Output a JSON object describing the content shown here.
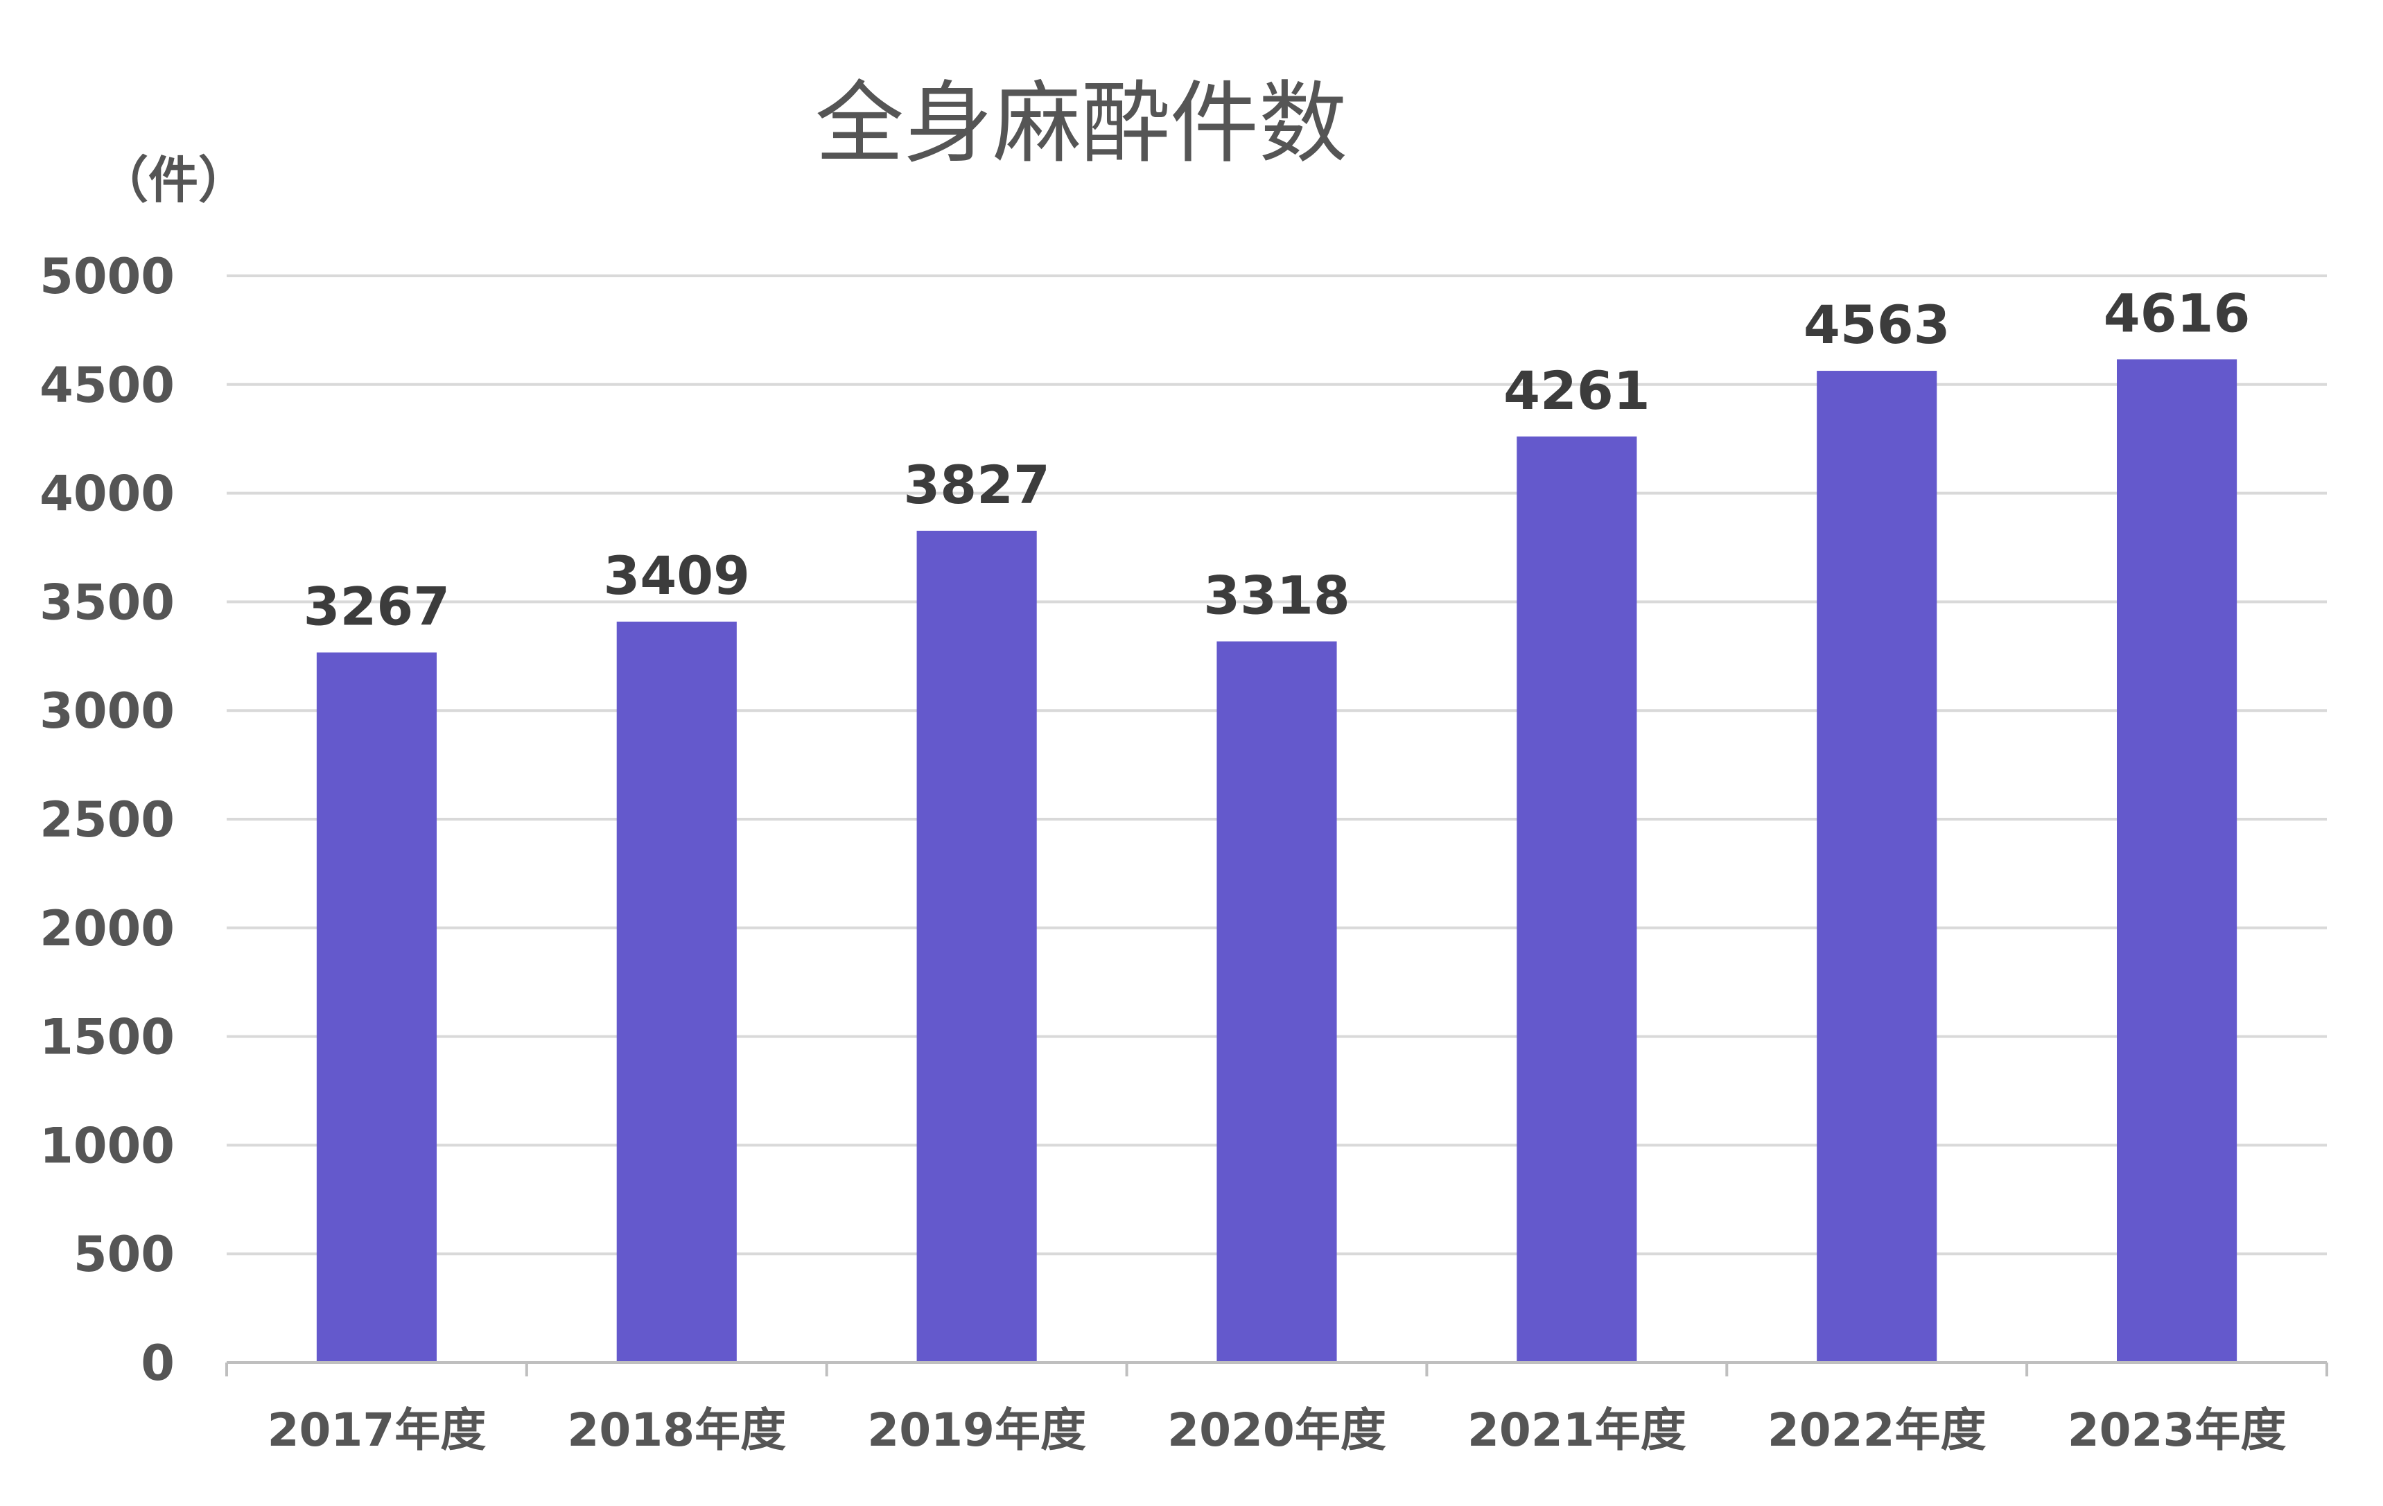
{
  "chart_data": {
    "type": "bar",
    "title": "全身麻酔件数",
    "ylabel": "（件）",
    "xlabel": "",
    "categories": [
      "2017年度",
      "2018年度",
      "2019年度",
      "2020年度",
      "2021年度",
      "2022年度",
      "2023年度"
    ],
    "values": [
      3267,
      3409,
      3827,
      3318,
      4261,
      4563,
      4616
    ],
    "ylim": [
      0,
      5000
    ],
    "yticks": [
      0,
      500,
      1000,
      1500,
      2000,
      2500,
      3000,
      3500,
      4000,
      4500,
      5000
    ],
    "grid": true,
    "legend": "none",
    "data_labels": true,
    "bar_color": "#6459cc",
    "grid_color": "#d9d9d9",
    "axis_color": "#bfbfbf"
  }
}
